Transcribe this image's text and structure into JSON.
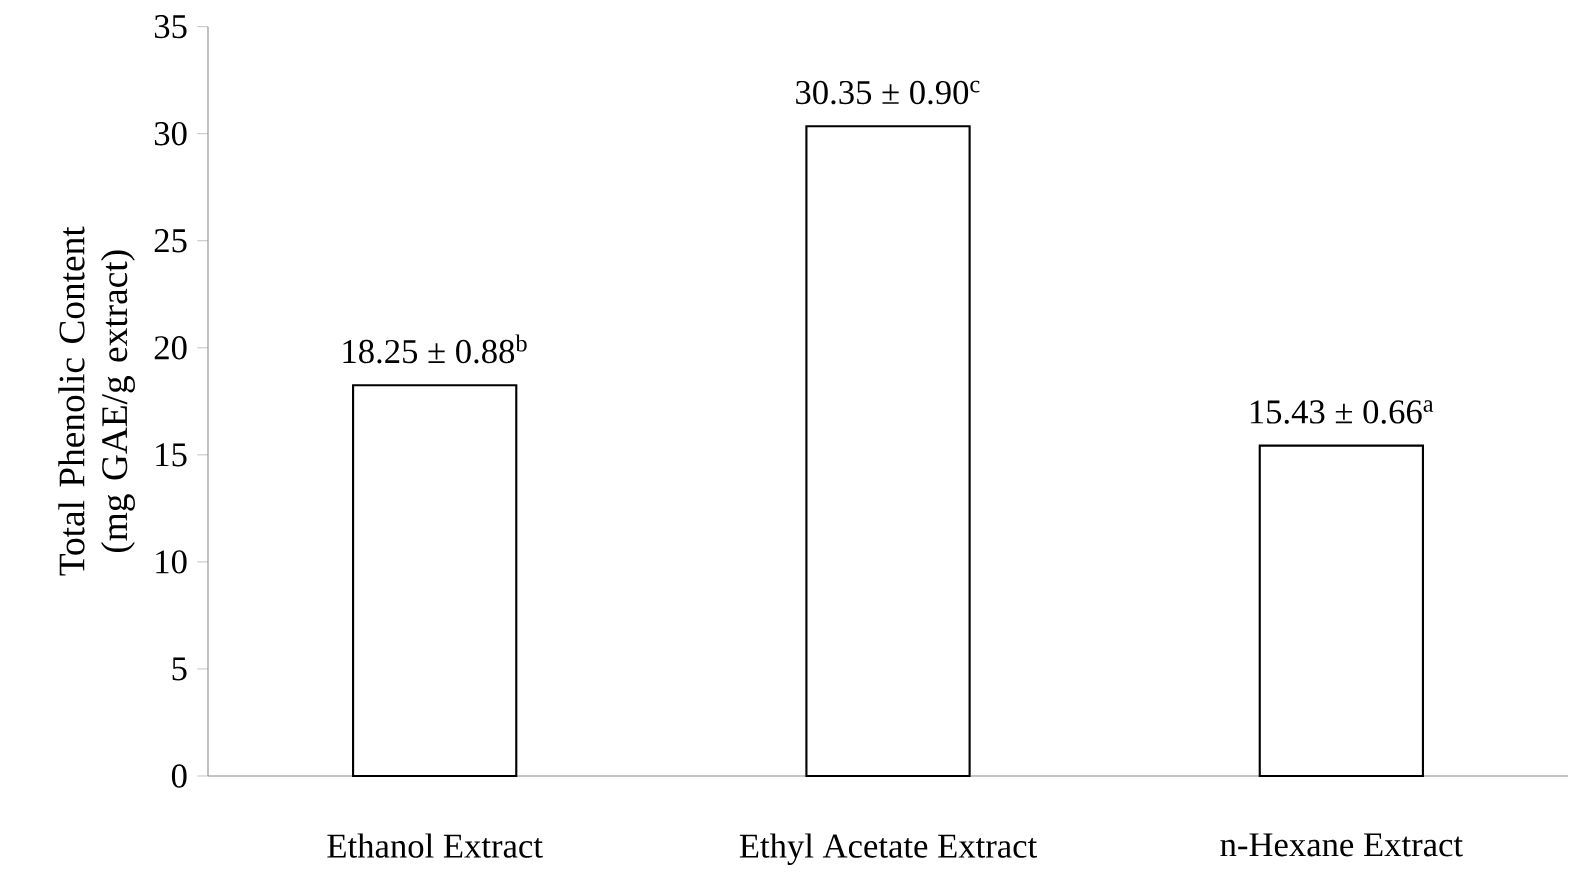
{
  "chart_data": {
    "type": "bar",
    "ylabel": "Total Phenolic Content (mg GAE/g extract)",
    "categories": [
      "Ethanol Extract",
      "Ethyl Acetate Extract",
      "n-Hexane Extract"
    ],
    "values": [
      18.25,
      30.35,
      15.43
    ],
    "color": "#ffffff",
    "value_labels": [
      "18.25 ± 0.88$^{b}$",
      "30.35 ± 0.90$^{c}$",
      "15.43 ± 0.66$^{a}$"
    ],
    "ylim": [
      0,
      35
    ],
    "yticks": [
      0,
      5,
      10,
      15,
      20,
      25,
      30,
      35
    ],
    "grid": false
  }
}
